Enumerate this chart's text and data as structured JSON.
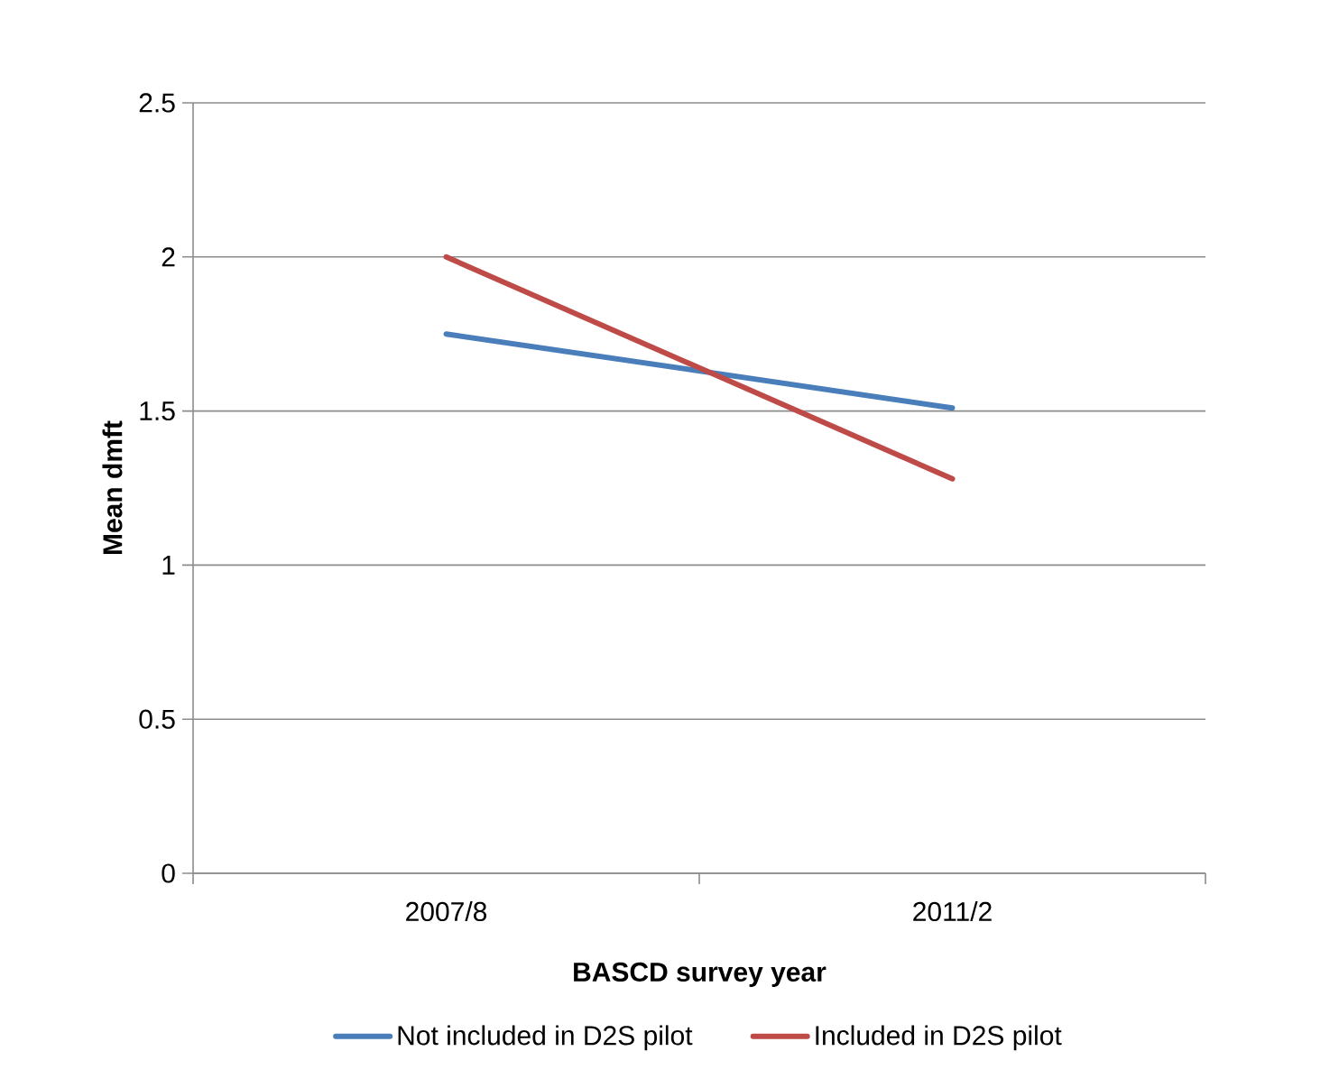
{
  "chart_data": {
    "type": "line",
    "xlabel": "BASCD survey year",
    "ylabel": "Mean dmft",
    "categories": [
      "2007/8",
      "2011/2"
    ],
    "series": [
      {
        "name": "Not included in D2S pilot",
        "color": "#4a7ebb",
        "values": [
          1.75,
          1.51
        ]
      },
      {
        "name": "Included in D2S pilot",
        "color": "#be4b48",
        "values": [
          2.0,
          1.28
        ]
      }
    ],
    "ylim": [
      0,
      2.5
    ],
    "yticks": [
      0,
      0.5,
      1,
      1.5,
      2,
      2.5
    ],
    "grid": "y",
    "legend": "bottom",
    "line_style": "solid"
  }
}
